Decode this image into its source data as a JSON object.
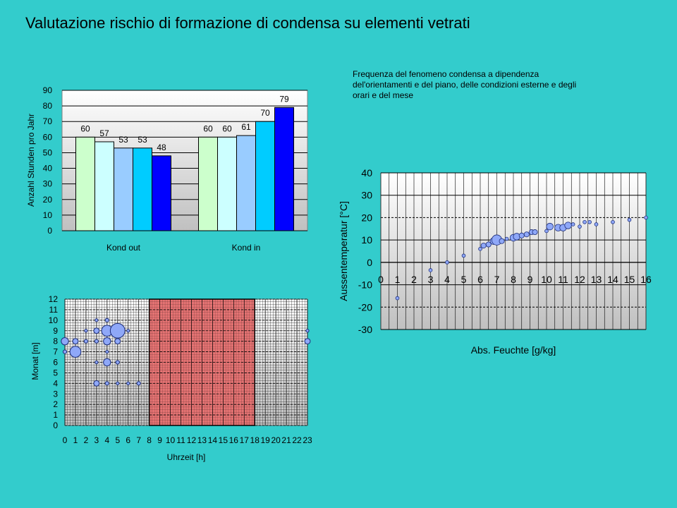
{
  "title": "Valutazione rischio di formazione di condensa su elementi vetrati",
  "note": "Frequenza del fenomeno condensa a dipendenza del'orientamenti e del piano, delle condizioni esterne e degli orari e del mese",
  "chart_data": [
    {
      "type": "bar",
      "ylabel": "Anzahl Stunden pro Jahr",
      "xlabel": "",
      "ylim": [
        0,
        90
      ],
      "yticks": [
        0,
        10,
        20,
        30,
        40,
        50,
        60,
        70,
        80,
        90
      ],
      "categories": [
        "Kond out",
        "Kond in"
      ],
      "series_colors": [
        "#ccffcc",
        "#ccffff",
        "#99ccff",
        "#00ccff",
        "#0000ff"
      ],
      "values": [
        [
          60,
          57,
          53,
          53,
          48
        ],
        [
          60,
          60,
          61,
          70,
          79
        ]
      ],
      "grid": true
    },
    {
      "type": "scatter",
      "xlabel": "Abs. Feuchte [g/kg]",
      "ylabel": "Aussentemperatur [°C]",
      "xlim": [
        0,
        16
      ],
      "ylim": [
        -30,
        40
      ],
      "xticks": [
        0,
        1,
        2,
        3,
        4,
        5,
        6,
        7,
        8,
        9,
        10,
        11,
        12,
        13,
        14,
        15,
        16
      ],
      "yticks": [
        -30,
        -20,
        -10,
        0,
        10,
        20,
        30,
        40
      ],
      "grid": true,
      "points": [
        {
          "x": 1,
          "y": -16,
          "s": 1
        },
        {
          "x": 3,
          "y": -3.5,
          "s": 1
        },
        {
          "x": 4,
          "y": 0,
          "s": 1
        },
        {
          "x": 5,
          "y": 3,
          "s": 1
        },
        {
          "x": 6,
          "y": 6,
          "s": 1
        },
        {
          "x": 6.2,
          "y": 7.5,
          "s": 1.5
        },
        {
          "x": 6.5,
          "y": 8,
          "s": 1.5
        },
        {
          "x": 6.8,
          "y": 9.5,
          "s": 2
        },
        {
          "x": 7,
          "y": 10,
          "s": 3
        },
        {
          "x": 7.3,
          "y": 9.5,
          "s": 1.5
        },
        {
          "x": 7.6,
          "y": 10.5,
          "s": 1
        },
        {
          "x": 8,
          "y": 11,
          "s": 2
        },
        {
          "x": 8.2,
          "y": 11.5,
          "s": 2
        },
        {
          "x": 8.5,
          "y": 12,
          "s": 1.5
        },
        {
          "x": 8.8,
          "y": 12.5,
          "s": 1.5
        },
        {
          "x": 9.1,
          "y": 13.5,
          "s": 1.5
        },
        {
          "x": 9.3,
          "y": 13.5,
          "s": 1.5
        },
        {
          "x": 10,
          "y": 14,
          "s": 1
        },
        {
          "x": 10.2,
          "y": 16,
          "s": 2
        },
        {
          "x": 10.7,
          "y": 15.5,
          "s": 2
        },
        {
          "x": 11,
          "y": 15.5,
          "s": 2
        },
        {
          "x": 11.3,
          "y": 16.5,
          "s": 2
        },
        {
          "x": 11.6,
          "y": 17,
          "s": 1
        },
        {
          "x": 12,
          "y": 16,
          "s": 1
        },
        {
          "x": 12.3,
          "y": 18,
          "s": 1
        },
        {
          "x": 12.6,
          "y": 18,
          "s": 1
        },
        {
          "x": 13,
          "y": 17,
          "s": 1
        },
        {
          "x": 14,
          "y": 18,
          "s": 1
        },
        {
          "x": 15,
          "y": 19,
          "s": 1
        },
        {
          "x": 16,
          "y": 20,
          "s": 1
        }
      ]
    },
    {
      "type": "scatter",
      "xlabel": "Uhrzeit [h]",
      "ylabel": "Monat [m]",
      "xlim": [
        0,
        23
      ],
      "ylim": [
        0,
        12
      ],
      "xticks": [
        0,
        1,
        2,
        3,
        4,
        5,
        6,
        7,
        8,
        9,
        10,
        11,
        12,
        13,
        14,
        15,
        16,
        17,
        18,
        19,
        20,
        21,
        22,
        23
      ],
      "yticks": [
        0,
        1,
        2,
        3,
        4,
        5,
        6,
        7,
        8,
        9,
        10,
        11,
        12
      ],
      "grid": true,
      "shaded_range_x": [
        8,
        18
      ],
      "points": [
        {
          "x": 0,
          "y": 7,
          "s": 1
        },
        {
          "x": 0,
          "y": 8,
          "s": 2
        },
        {
          "x": 1,
          "y": 7,
          "s": 3
        },
        {
          "x": 1,
          "y": 8,
          "s": 1.5
        },
        {
          "x": 2,
          "y": 8,
          "s": 1
        },
        {
          "x": 2,
          "y": 9,
          "s": 0.8
        },
        {
          "x": 3,
          "y": 4,
          "s": 1.5
        },
        {
          "x": 3,
          "y": 6,
          "s": 0.8
        },
        {
          "x": 3,
          "y": 8,
          "s": 1
        },
        {
          "x": 3,
          "y": 9,
          "s": 1.5
        },
        {
          "x": 3,
          "y": 10,
          "s": 0.8
        },
        {
          "x": 4,
          "y": 4,
          "s": 1
        },
        {
          "x": 4,
          "y": 6,
          "s": 2
        },
        {
          "x": 4,
          "y": 7,
          "s": 0.8
        },
        {
          "x": 4,
          "y": 8,
          "s": 2
        },
        {
          "x": 4,
          "y": 9,
          "s": 3
        },
        {
          "x": 4,
          "y": 10,
          "s": 1
        },
        {
          "x": 5,
          "y": 4,
          "s": 0.8
        },
        {
          "x": 5,
          "y": 6,
          "s": 1
        },
        {
          "x": 5,
          "y": 8,
          "s": 1.5
        },
        {
          "x": 5,
          "y": 9,
          "s": 4
        },
        {
          "x": 6,
          "y": 4,
          "s": 0.8
        },
        {
          "x": 6,
          "y": 9,
          "s": 0.8
        },
        {
          "x": 7,
          "y": 4,
          "s": 1
        },
        {
          "x": 23,
          "y": 8,
          "s": 1.5
        },
        {
          "x": 23,
          "y": 9,
          "s": 0.8
        }
      ]
    }
  ]
}
